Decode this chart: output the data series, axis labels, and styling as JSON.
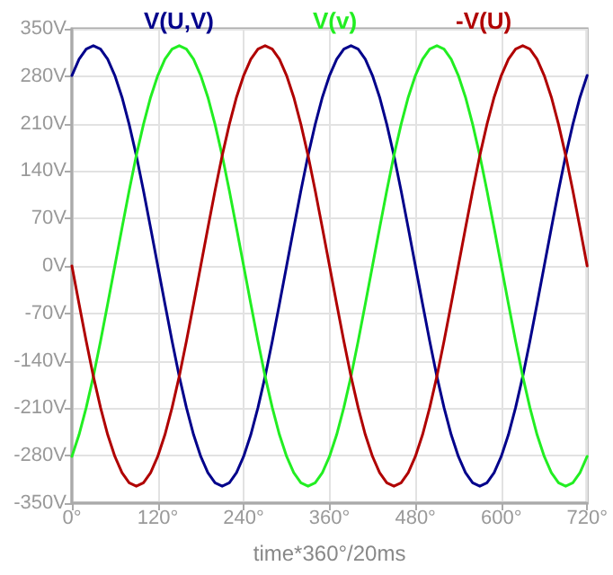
{
  "chart_data": {
    "type": "line",
    "xlabel": "time*360°/20ms",
    "x": [
      0,
      10,
      20,
      30,
      40,
      50,
      60,
      70,
      80,
      90,
      100,
      110,
      120,
      130,
      140,
      150,
      160,
      170,
      180,
      190,
      200,
      210,
      220,
      230,
      240,
      250,
      260,
      270,
      280,
      290,
      300,
      310,
      320,
      330,
      340,
      350,
      360,
      370,
      380,
      390,
      400,
      410,
      420,
      430,
      440,
      450,
      460,
      470,
      480,
      490,
      500,
      510,
      520,
      530,
      540,
      550,
      560,
      570,
      580,
      590,
      600,
      610,
      620,
      630,
      640,
      650,
      660,
      670,
      680,
      690,
      700,
      710,
      720
    ],
    "series": [
      {
        "name": "V(U,V)",
        "color": "#00008b",
        "values": [
          281,
          305,
          320,
          325,
          320,
          305,
          281,
          249,
          209,
          163,
          111,
          56,
          0,
          -56,
          -111,
          -163,
          -209,
          -249,
          -281,
          -305,
          -320,
          -325,
          -320,
          -305,
          -281,
          -249,
          -209,
          -163,
          -111,
          -56,
          0,
          56,
          111,
          163,
          209,
          249,
          281,
          305,
          320,
          325,
          320,
          305,
          281,
          249,
          209,
          163,
          111,
          56,
          0,
          -56,
          -111,
          -163,
          -209,
          -249,
          -281,
          -305,
          -320,
          -325,
          -320,
          -305,
          -281,
          -249,
          -209,
          -163,
          -111,
          -56,
          0,
          56,
          111,
          163,
          209,
          249,
          281
        ]
      },
      {
        "name": "V(v)",
        "color": "#22ee22",
        "values": [
          -281,
          -249,
          -209,
          -163,
          -111,
          -56,
          0,
          56,
          111,
          163,
          209,
          249,
          281,
          305,
          320,
          325,
          320,
          305,
          281,
          249,
          209,
          163,
          111,
          56,
          0,
          -56,
          -111,
          -163,
          -209,
          -249,
          -281,
          -305,
          -320,
          -325,
          -320,
          -305,
          -281,
          -249,
          -209,
          -163,
          -111,
          -56,
          0,
          56,
          111,
          163,
          209,
          249,
          281,
          305,
          320,
          325,
          320,
          305,
          281,
          249,
          209,
          163,
          111,
          56,
          0,
          -56,
          -111,
          -163,
          -209,
          -249,
          -281,
          -305,
          -320,
          -325,
          -320,
          -305,
          -281
        ]
      },
      {
        "name": "-V(U)",
        "color": "#b00000",
        "values": [
          0,
          -56,
          -111,
          -163,
          -209,
          -249,
          -281,
          -305,
          -320,
          -325,
          -320,
          -305,
          -281,
          -249,
          -209,
          -163,
          -111,
          -56,
          0,
          56,
          111,
          163,
          209,
          249,
          281,
          305,
          320,
          325,
          320,
          305,
          281,
          249,
          209,
          163,
          111,
          56,
          0,
          -56,
          -111,
          -163,
          -209,
          -249,
          -281,
          -305,
          -320,
          -325,
          -320,
          -305,
          -281,
          -249,
          -209,
          -163,
          -111,
          -56,
          0,
          56,
          111,
          163,
          209,
          249,
          281,
          305,
          320,
          325,
          320,
          305,
          281,
          249,
          209,
          163,
          111,
          56,
          0
        ]
      }
    ],
    "xlim": [
      0,
      720
    ],
    "xticks": [
      {
        "value": 0,
        "label": "0°"
      },
      {
        "value": 120,
        "label": "120°"
      },
      {
        "value": 240,
        "label": "240°"
      },
      {
        "value": 360,
        "label": "360°"
      },
      {
        "value": 480,
        "label": "480°"
      },
      {
        "value": 600,
        "label": "600°"
      },
      {
        "value": 720,
        "label": "720°"
      }
    ],
    "ylim": [
      -350,
      350
    ],
    "yticks": [
      {
        "value": -350,
        "label": "-350V"
      },
      {
        "value": -280,
        "label": "-280V"
      },
      {
        "value": -210,
        "label": "-210V"
      },
      {
        "value": -140,
        "label": "-140V"
      },
      {
        "value": -70,
        "label": "-70V"
      },
      {
        "value": 0,
        "label": "0V"
      },
      {
        "value": 70,
        "label": "70V"
      },
      {
        "value": 140,
        "label": "140V"
      },
      {
        "value": 210,
        "label": "210V"
      },
      {
        "value": 280,
        "label": "280V"
      },
      {
        "value": 350,
        "label": "350V"
      }
    ],
    "grid": true,
    "legend": "top",
    "marker": "none",
    "line_style": "solid"
  }
}
